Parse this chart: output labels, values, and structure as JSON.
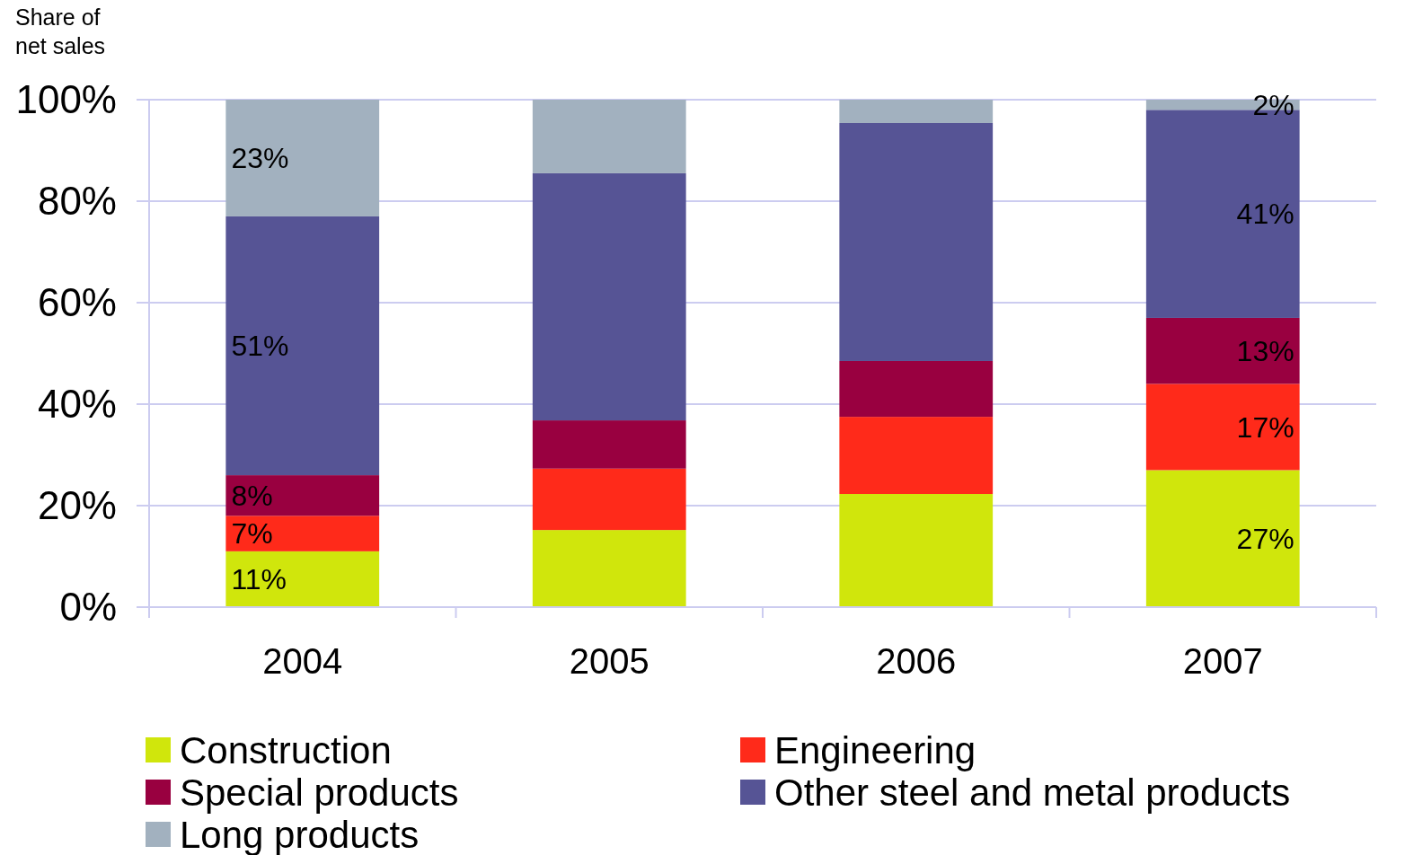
{
  "chart_data": {
    "type": "bar",
    "stacked": true,
    "ylabel": "Share of net sales",
    "categories": [
      "2004",
      "2005",
      "2006",
      "2007"
    ],
    "series": [
      {
        "name": "Construction",
        "color": "#d0e60c",
        "values": [
          11,
          15.2,
          22.3,
          27
        ],
        "value_labels": [
          "11%",
          null,
          null,
          "27%"
        ]
      },
      {
        "name": "Engineering",
        "color": "#ff2a1a",
        "values": [
          7,
          12.1,
          15.2,
          17
        ],
        "value_labels": [
          "7%",
          null,
          null,
          "17%"
        ]
      },
      {
        "name": "Special products",
        "color": "#990040",
        "values": [
          8,
          9.5,
          11,
          13
        ],
        "value_labels": [
          "8%",
          null,
          null,
          "13%"
        ]
      },
      {
        "name": "Other steel and metal products",
        "color": "#565495",
        "values": [
          51,
          48.7,
          46.9,
          41
        ],
        "value_labels": [
          "51%",
          null,
          null,
          "41%"
        ]
      },
      {
        "name": "Long products",
        "color": "#a2b1bf",
        "values": [
          23,
          14.5,
          4.6,
          2
        ],
        "value_labels": [
          "23%",
          null,
          null,
          "2%"
        ]
      }
    ],
    "ylim": [
      0,
      100
    ],
    "yticks": [
      {
        "value": 0,
        "label": "0%"
      },
      {
        "value": 20,
        "label": "20%"
      },
      {
        "value": 40,
        "label": "40%"
      },
      {
        "value": 60,
        "label": "60%"
      },
      {
        "value": 80,
        "label": "80%"
      },
      {
        "value": 100,
        "label": "100%"
      }
    ],
    "grid": "y",
    "legend": "bottom"
  }
}
